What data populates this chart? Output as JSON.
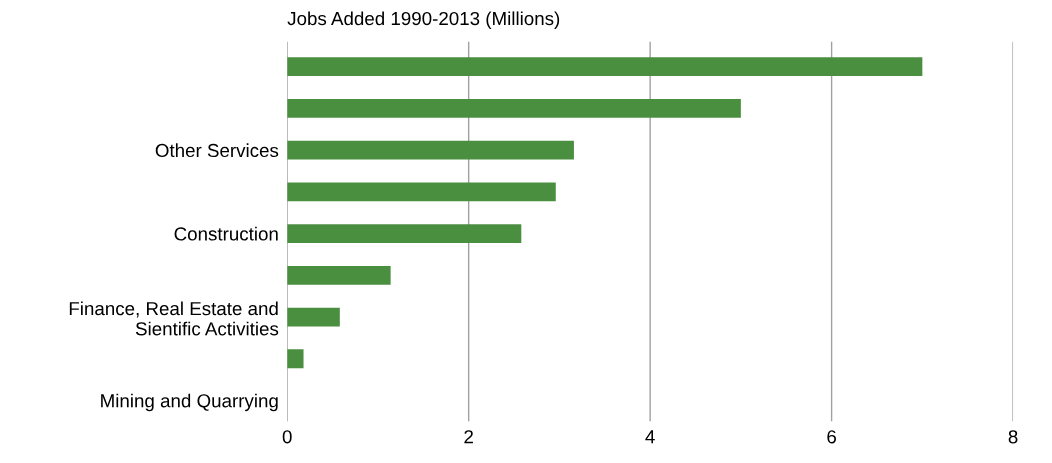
{
  "chart_data": {
    "type": "bar",
    "orientation": "horizontal",
    "title": "Jobs Added 1990-2013 (Millions)",
    "categories": [
      null,
      null,
      "Other Services",
      null,
      "Construction",
      null,
      "Finance, Real Estate and\nSientific Activities",
      null,
      "Mining and Quarrying"
    ],
    "values": [
      7.0,
      5.0,
      3.16,
      2.96,
      2.58,
      1.14,
      0.58,
      0.18,
      0
    ],
    "color": "#4a8f3f",
    "xlim": [
      0,
      8
    ],
    "xticks": [
      0,
      2,
      4,
      6,
      8
    ],
    "grid": "x"
  }
}
